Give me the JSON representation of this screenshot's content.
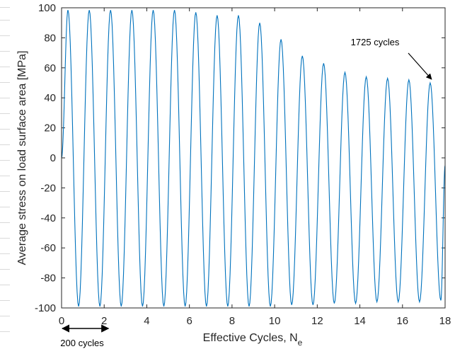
{
  "chart_data": {
    "type": "line",
    "title": "",
    "xlabel": "Effective Cycles, N",
    "xlabel_subscript": "e",
    "ylabel": "Average stress on load surface area [MPa]",
    "xlim": [
      0,
      18
    ],
    "ylim": [
      -100,
      100
    ],
    "xticks": [
      0,
      2,
      4,
      6,
      8,
      10,
      12,
      14,
      16,
      18
    ],
    "yticks": [
      -100,
      -80,
      -60,
      -40,
      -20,
      0,
      20,
      40,
      60,
      80,
      100
    ],
    "grid": false,
    "legend": "none",
    "line_color": "#0072BD",
    "series": [
      {
        "description": "sinusoidal stress signal, trough near -100 MPa every cycle, decaying peak amplitude",
        "peaks": [
          {
            "x": 0.3,
            "y": 98.5
          },
          {
            "x": 1.3,
            "y": 98.5
          },
          {
            "x": 2.3,
            "y": 98.5
          },
          {
            "x": 3.3,
            "y": 98.5
          },
          {
            "x": 4.3,
            "y": 98.5
          },
          {
            "x": 5.3,
            "y": 98.5
          },
          {
            "x": 6.3,
            "y": 97
          },
          {
            "x": 7.3,
            "y": 95
          },
          {
            "x": 8.3,
            "y": 95
          },
          {
            "x": 9.3,
            "y": 90
          },
          {
            "x": 10.3,
            "y": 79
          },
          {
            "x": 11.3,
            "y": 68
          },
          {
            "x": 12.3,
            "y": 63
          },
          {
            "x": 13.3,
            "y": 57
          },
          {
            "x": 14.3,
            "y": 54
          },
          {
            "x": 15.3,
            "y": 53
          },
          {
            "x": 16.3,
            "y": 52
          },
          {
            "x": 17.3,
            "y": 50
          }
        ],
        "troughs": [
          {
            "x": 0.8,
            "y": -99
          },
          {
            "x": 1.8,
            "y": -99
          },
          {
            "x": 2.8,
            "y": -99
          },
          {
            "x": 3.8,
            "y": -99
          },
          {
            "x": 4.8,
            "y": -99
          },
          {
            "x": 5.8,
            "y": -99
          },
          {
            "x": 6.8,
            "y": -99
          },
          {
            "x": 7.8,
            "y": -99
          },
          {
            "x": 8.8,
            "y": -99
          },
          {
            "x": 9.8,
            "y": -99
          },
          {
            "x": 10.8,
            "y": -98
          },
          {
            "x": 11.8,
            "y": -98
          },
          {
            "x": 12.8,
            "y": -97
          },
          {
            "x": 13.8,
            "y": -97
          },
          {
            "x": 14.8,
            "y": -96
          },
          {
            "x": 15.8,
            "y": -96
          },
          {
            "x": 16.8,
            "y": -96
          },
          {
            "x": 17.8,
            "y": -95
          }
        ],
        "end": {
          "x": 18,
          "y": -5
        }
      }
    ],
    "annotations": [
      {
        "text": "1725 cycles",
        "points_to": {
          "x": 17.3,
          "y": 50
        }
      },
      {
        "text": "200 cycles",
        "span": [
          0,
          2.2
        ]
      }
    ]
  }
}
